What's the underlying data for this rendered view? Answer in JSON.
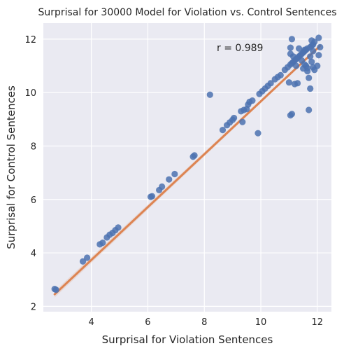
{
  "chart_data": {
    "type": "scatter",
    "title": "Surprisal for 30000 Model for Violation vs. Control Sentences",
    "xlabel": "Surprisal for Violation Sentences",
    "ylabel": "Surprisal for Control Sentences",
    "xlim": [
      2.3,
      12.5
    ],
    "ylim": [
      1.8,
      12.6
    ],
    "xticks": [
      4,
      6,
      8,
      10,
      12
    ],
    "yticks": [
      2,
      4,
      6,
      8,
      10,
      12
    ],
    "grid": true,
    "annotation": "r = 0.989",
    "colors": {
      "points": "#4c72b0",
      "fit_line": "#dd8452",
      "background": "#eaeaf2",
      "grid": "#ffffff"
    },
    "fit_line": {
      "x": [
        2.7,
        12.1
      ],
      "y": [
        2.45,
        11.75
      ]
    },
    "points": [
      [
        2.7,
        2.65
      ],
      [
        2.75,
        2.62
      ],
      [
        3.7,
        3.68
      ],
      [
        3.85,
        3.82
      ],
      [
        4.3,
        4.32
      ],
      [
        4.4,
        4.38
      ],
      [
        4.55,
        4.58
      ],
      [
        4.65,
        4.68
      ],
      [
        4.75,
        4.75
      ],
      [
        4.85,
        4.85
      ],
      [
        4.95,
        4.95
      ],
      [
        6.1,
        6.1
      ],
      [
        6.15,
        6.12
      ],
      [
        6.4,
        6.35
      ],
      [
        6.5,
        6.48
      ],
      [
        6.75,
        6.75
      ],
      [
        6.95,
        6.95
      ],
      [
        7.6,
        7.6
      ],
      [
        7.65,
        7.65
      ],
      [
        8.2,
        9.92
      ],
      [
        8.65,
        8.6
      ],
      [
        8.8,
        8.78
      ],
      [
        8.9,
        8.88
      ],
      [
        9.0,
        8.98
      ],
      [
        9.05,
        9.05
      ],
      [
        9.3,
        9.3
      ],
      [
        9.35,
        8.9
      ],
      [
        9.4,
        9.35
      ],
      [
        9.5,
        9.38
      ],
      [
        9.55,
        9.55
      ],
      [
        9.6,
        9.65
      ],
      [
        9.7,
        9.7
      ],
      [
        9.9,
        8.48
      ],
      [
        9.95,
        9.95
      ],
      [
        10.05,
        10.05
      ],
      [
        10.15,
        10.15
      ],
      [
        10.25,
        10.25
      ],
      [
        10.35,
        10.35
      ],
      [
        10.5,
        10.5
      ],
      [
        10.6,
        10.58
      ],
      [
        10.7,
        10.65
      ],
      [
        10.85,
        10.85
      ],
      [
        10.95,
        10.95
      ],
      [
        11.0,
        10.38
      ],
      [
        11.05,
        9.15
      ],
      [
        11.1,
        9.2
      ],
      [
        11.05,
        11.05
      ],
      [
        11.1,
        11.1
      ],
      [
        11.15,
        11.15
      ],
      [
        11.2,
        11.2
      ],
      [
        11.25,
        11.25
      ],
      [
        11.05,
        11.68
      ],
      [
        11.05,
        11.45
      ],
      [
        11.1,
        12.0
      ],
      [
        11.15,
        11.35
      ],
      [
        11.2,
        10.32
      ],
      [
        11.3,
        10.35
      ],
      [
        11.3,
        11.3
      ],
      [
        11.35,
        11.35
      ],
      [
        11.4,
        11.4
      ],
      [
        11.45,
        11.45
      ],
      [
        11.5,
        11.5
      ],
      [
        11.55,
        11.55
      ],
      [
        11.35,
        11.65
      ],
      [
        11.45,
        11.2
      ],
      [
        11.55,
        11.6
      ],
      [
        11.6,
        11.6
      ],
      [
        11.65,
        11.65
      ],
      [
        11.6,
        11.0
      ],
      [
        11.65,
        10.92
      ],
      [
        11.65,
        10.8
      ],
      [
        11.7,
        10.55
      ],
      [
        11.75,
        11.7
      ],
      [
        11.8,
        11.75
      ],
      [
        11.85,
        11.8
      ],
      [
        11.75,
        11.35
      ],
      [
        11.8,
        11.15
      ],
      [
        11.85,
        11.55
      ],
      [
        11.8,
        11.95
      ],
      [
        11.9,
        11.9
      ],
      [
        11.7,
        9.35
      ],
      [
        11.75,
        10.15
      ],
      [
        11.85,
        10.95
      ],
      [
        11.9,
        10.85
      ],
      [
        12.0,
        11.0
      ],
      [
        12.05,
        11.4
      ],
      [
        12.05,
        12.05
      ],
      [
        12.1,
        11.7
      ],
      [
        11.55,
        11.05
      ],
      [
        11.25,
        11.0
      ],
      [
        11.5,
        10.9
      ]
    ]
  }
}
